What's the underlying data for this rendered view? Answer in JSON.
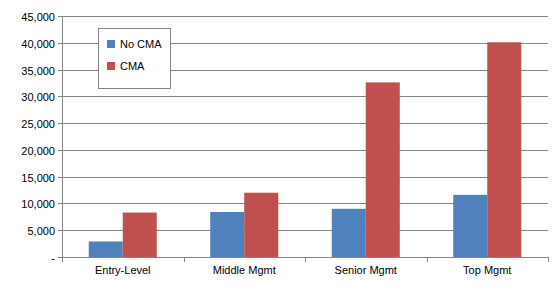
{
  "chart_data": {
    "type": "bar",
    "categories": [
      "Entry-Level",
      "Middle Mgmt",
      "Senior Mgmt",
      "Top Mgmt"
    ],
    "series": [
      {
        "name": "No CMA",
        "color": "#4f81bd",
        "values": [
          2900,
          8400,
          9000,
          11600
        ]
      },
      {
        "name": "CMA",
        "color": "#c0504d",
        "values": [
          8300,
          12000,
          32600,
          40100
        ]
      }
    ],
    "ylim": [
      0,
      45000
    ],
    "yticks": [
      {
        "value": 0,
        "label": "-"
      },
      {
        "value": 5000,
        "label": "5,000"
      },
      {
        "value": 10000,
        "label": "10,000"
      },
      {
        "value": 15000,
        "label": "15,000"
      },
      {
        "value": 20000,
        "label": "20,000"
      },
      {
        "value": 25000,
        "label": "25,000"
      },
      {
        "value": 30000,
        "label": "30,000"
      },
      {
        "value": 35000,
        "label": "35,000"
      },
      {
        "value": 40000,
        "label": "40,000"
      },
      {
        "value": 45000,
        "label": "45,000"
      }
    ],
    "grid": true,
    "legend": "upper left"
  }
}
